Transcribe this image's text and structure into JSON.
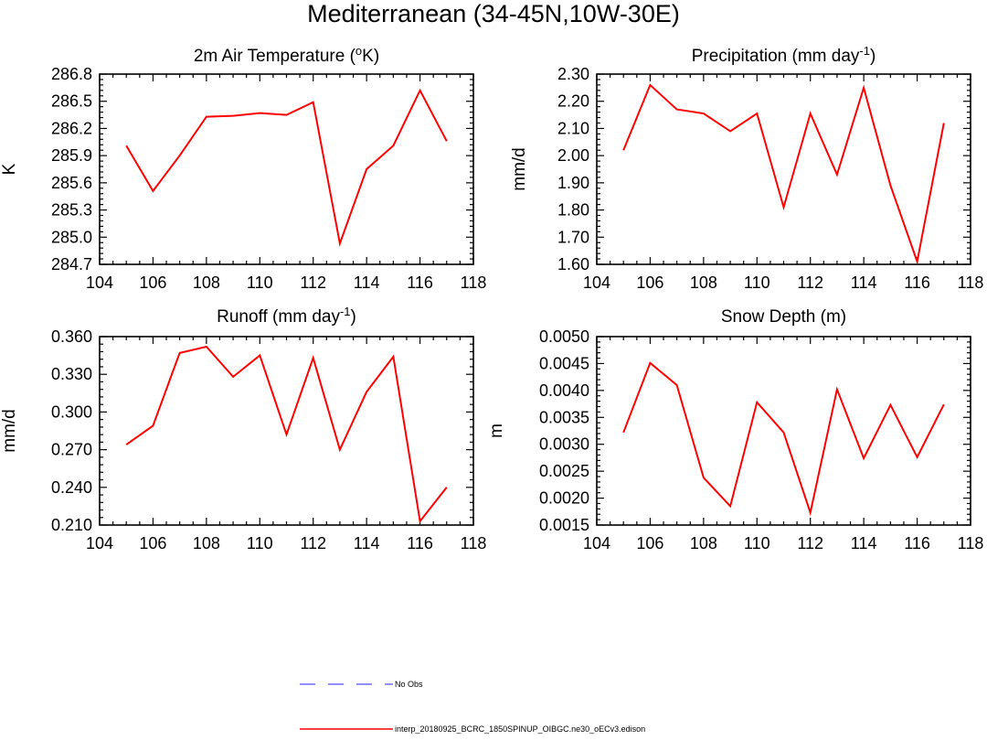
{
  "figure": {
    "title": "Mediterranean (34-45N,10W-30E)"
  },
  "legend": {
    "entries": [
      {
        "label": "No Obs",
        "color": "#6b6bff",
        "style": "dashed"
      },
      {
        "label": "interp_20180925_BCRC_1850SPINUP_OIBGC.ne30_oECv3.edison",
        "color": "#ff0000",
        "style": "solid"
      }
    ]
  },
  "chart_data": [
    {
      "type": "line",
      "title": "2m Air Temperature (°K)",
      "title_parts": {
        "pre": "2m Air Temperature (",
        "sup": "o",
        "post": "K)"
      },
      "ylabel": "K",
      "xlim": [
        104,
        118
      ],
      "xticks": [
        "104",
        "106",
        "108",
        "110",
        "112",
        "114",
        "116",
        "118"
      ],
      "ylim": [
        284.7,
        286.8
      ],
      "yticks": [
        "284.7",
        "285.0",
        "285.3",
        "285.6",
        "285.9",
        "286.2",
        "286.5",
        "286.8"
      ],
      "series": [
        {
          "name": "interp_20180925_BCRC_1850SPINUP_OIBGC.ne30_oECv3.edison",
          "color": "#ff0000",
          "x": [
            105,
            106,
            107,
            108,
            109,
            110,
            111,
            112,
            113,
            114,
            115,
            116,
            117
          ],
          "y": [
            286.01,
            285.51,
            285.9,
            286.33,
            286.34,
            286.37,
            286.35,
            286.49,
            284.93,
            285.75,
            286.01,
            286.62,
            286.06
          ]
        }
      ]
    },
    {
      "type": "line",
      "title": "Precipitation (mm day-1)",
      "title_parts": {
        "pre": "Precipitation (mm day",
        "sup": "-1",
        "post": ")"
      },
      "ylabel": "mm/d",
      "xlim": [
        104,
        118
      ],
      "xticks": [
        "104",
        "106",
        "108",
        "110",
        "112",
        "114",
        "116",
        "118"
      ],
      "ylim": [
        1.6,
        2.3
      ],
      "yticks": [
        "1.60",
        "1.70",
        "1.80",
        "1.90",
        "2.00",
        "2.10",
        "2.20",
        "2.30"
      ],
      "series": [
        {
          "name": "interp_20180925_BCRC_1850SPINUP_OIBGC.ne30_oECv3.edison",
          "color": "#ff0000",
          "x": [
            105,
            106,
            107,
            108,
            109,
            110,
            111,
            112,
            113,
            114,
            115,
            116,
            117
          ],
          "y": [
            2.02,
            2.26,
            2.17,
            2.155,
            2.09,
            2.155,
            1.81,
            2.155,
            1.93,
            2.25,
            1.89,
            1.61,
            2.12
          ]
        }
      ]
    },
    {
      "type": "line",
      "title": "Runoff (mm day-1)",
      "title_parts": {
        "pre": "Runoff (mm day",
        "sup": "-1",
        "post": ")"
      },
      "ylabel": "mm/d",
      "xlim": [
        104,
        118
      ],
      "xticks": [
        "104",
        "106",
        "108",
        "110",
        "112",
        "114",
        "116",
        "118"
      ],
      "ylim": [
        0.21,
        0.36
      ],
      "yticks": [
        "0.210",
        "0.240",
        "0.270",
        "0.300",
        "0.330",
        "0.360"
      ],
      "series": [
        {
          "name": "interp_20180925_BCRC_1850SPINUP_OIBGC.ne30_oECv3.edison",
          "color": "#ff0000",
          "x": [
            105,
            106,
            107,
            108,
            109,
            110,
            111,
            112,
            113,
            114,
            115,
            116,
            117
          ],
          "y": [
            0.274,
            0.289,
            0.347,
            0.352,
            0.328,
            0.345,
            0.282,
            0.343,
            0.27,
            0.316,
            0.344,
            0.213,
            0.24
          ]
        }
      ]
    },
    {
      "type": "line",
      "title": "Snow Depth (m)",
      "title_parts": {
        "pre": "Snow Depth (m)",
        "sup": "",
        "post": ""
      },
      "ylabel": "m",
      "xlim": [
        104,
        118
      ],
      "xticks": [
        "104",
        "106",
        "108",
        "110",
        "112",
        "114",
        "116",
        "118"
      ],
      "ylim": [
        0.0015,
        0.005
      ],
      "yticks": [
        "0.0015",
        "0.0020",
        "0.0025",
        "0.0030",
        "0.0035",
        "0.0040",
        "0.0045",
        "0.0050"
      ],
      "series": [
        {
          "name": "interp_20180925_BCRC_1850SPINUP_OIBGC.ne30_oECv3.edison",
          "color": "#ff0000",
          "x": [
            105,
            106,
            107,
            108,
            109,
            110,
            111,
            112,
            113,
            114,
            115,
            116,
            117
          ],
          "y": [
            0.00322,
            0.00451,
            0.0041,
            0.00238,
            0.00185,
            0.00378,
            0.00322,
            0.00173,
            0.00402,
            0.00274,
            0.00373,
            0.00276,
            0.00374
          ]
        }
      ]
    }
  ]
}
